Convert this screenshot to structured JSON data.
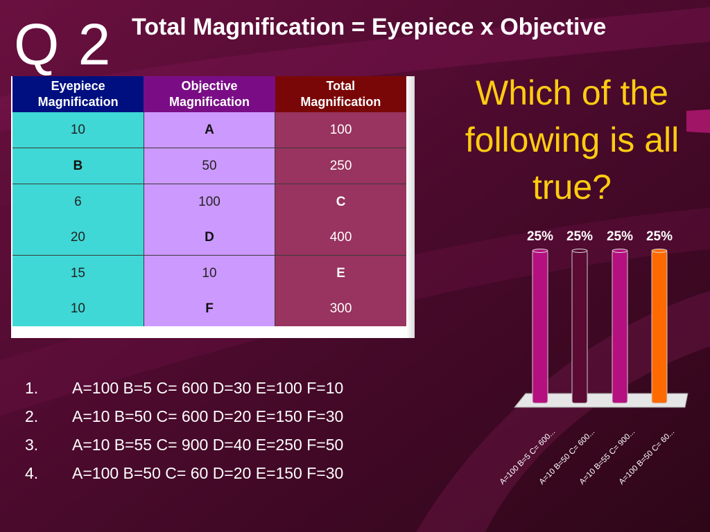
{
  "slide": {
    "question_number": "Q 2",
    "title": "Total Magnification = Eyepiece x Objective",
    "question": "Which of the following is all true?"
  },
  "table": {
    "headers": [
      [
        "Eyepiece",
        "Magnification"
      ],
      [
        "Objective",
        "Magnification"
      ],
      [
        "Total",
        "Magnification"
      ]
    ],
    "rows": [
      [
        "10",
        "A",
        "100"
      ],
      [
        "B",
        "50",
        "250"
      ],
      [
        "6",
        "100",
        "C"
      ],
      [
        "20",
        "D",
        "400"
      ],
      [
        "15",
        "10",
        "E"
      ],
      [
        "10",
        "F",
        "300"
      ]
    ]
  },
  "answers": [
    {
      "num": "1.",
      "text": "A=100 B=5 C= 600 D=30 E=100 F=10"
    },
    {
      "num": "2.",
      "text": "A=10 B=50 C= 600 D=20 E=150 F=30"
    },
    {
      "num": "3.",
      "text": "A=10 B=55 C= 900 D=40 E=250 F=50"
    },
    {
      "num": "4.",
      "text": "A=100 B=50 C= 60 D=20 E=150 F=30"
    }
  ],
  "chart_data": {
    "type": "bar",
    "categories": [
      "A=100 B=5 C= 600...",
      "A=10 B=50 C= 600...",
      "A=10 B=55 C= 900...",
      "A=100 B=50 C= 60..."
    ],
    "values": [
      25,
      25,
      25,
      25
    ],
    "value_labels": [
      "25%",
      "25%",
      "25%",
      "25%"
    ],
    "ylim": [
      0,
      25
    ],
    "colors": [
      "#b5107f",
      "#5a0a33",
      "#b5107f",
      "#ff6a00"
    ],
    "grid": false,
    "legend": "none"
  },
  "colors": {
    "background": "#4a0c2c",
    "title_text": "#ffffff",
    "question_text": "#ffcc11",
    "header_eyepiece": "#000f80",
    "header_objective": "#7a0d86",
    "header_total": "#7a0707",
    "col_eyepiece": "#3fd8d6",
    "col_objective": "#cc99ff",
    "col_total": "#99335f"
  }
}
